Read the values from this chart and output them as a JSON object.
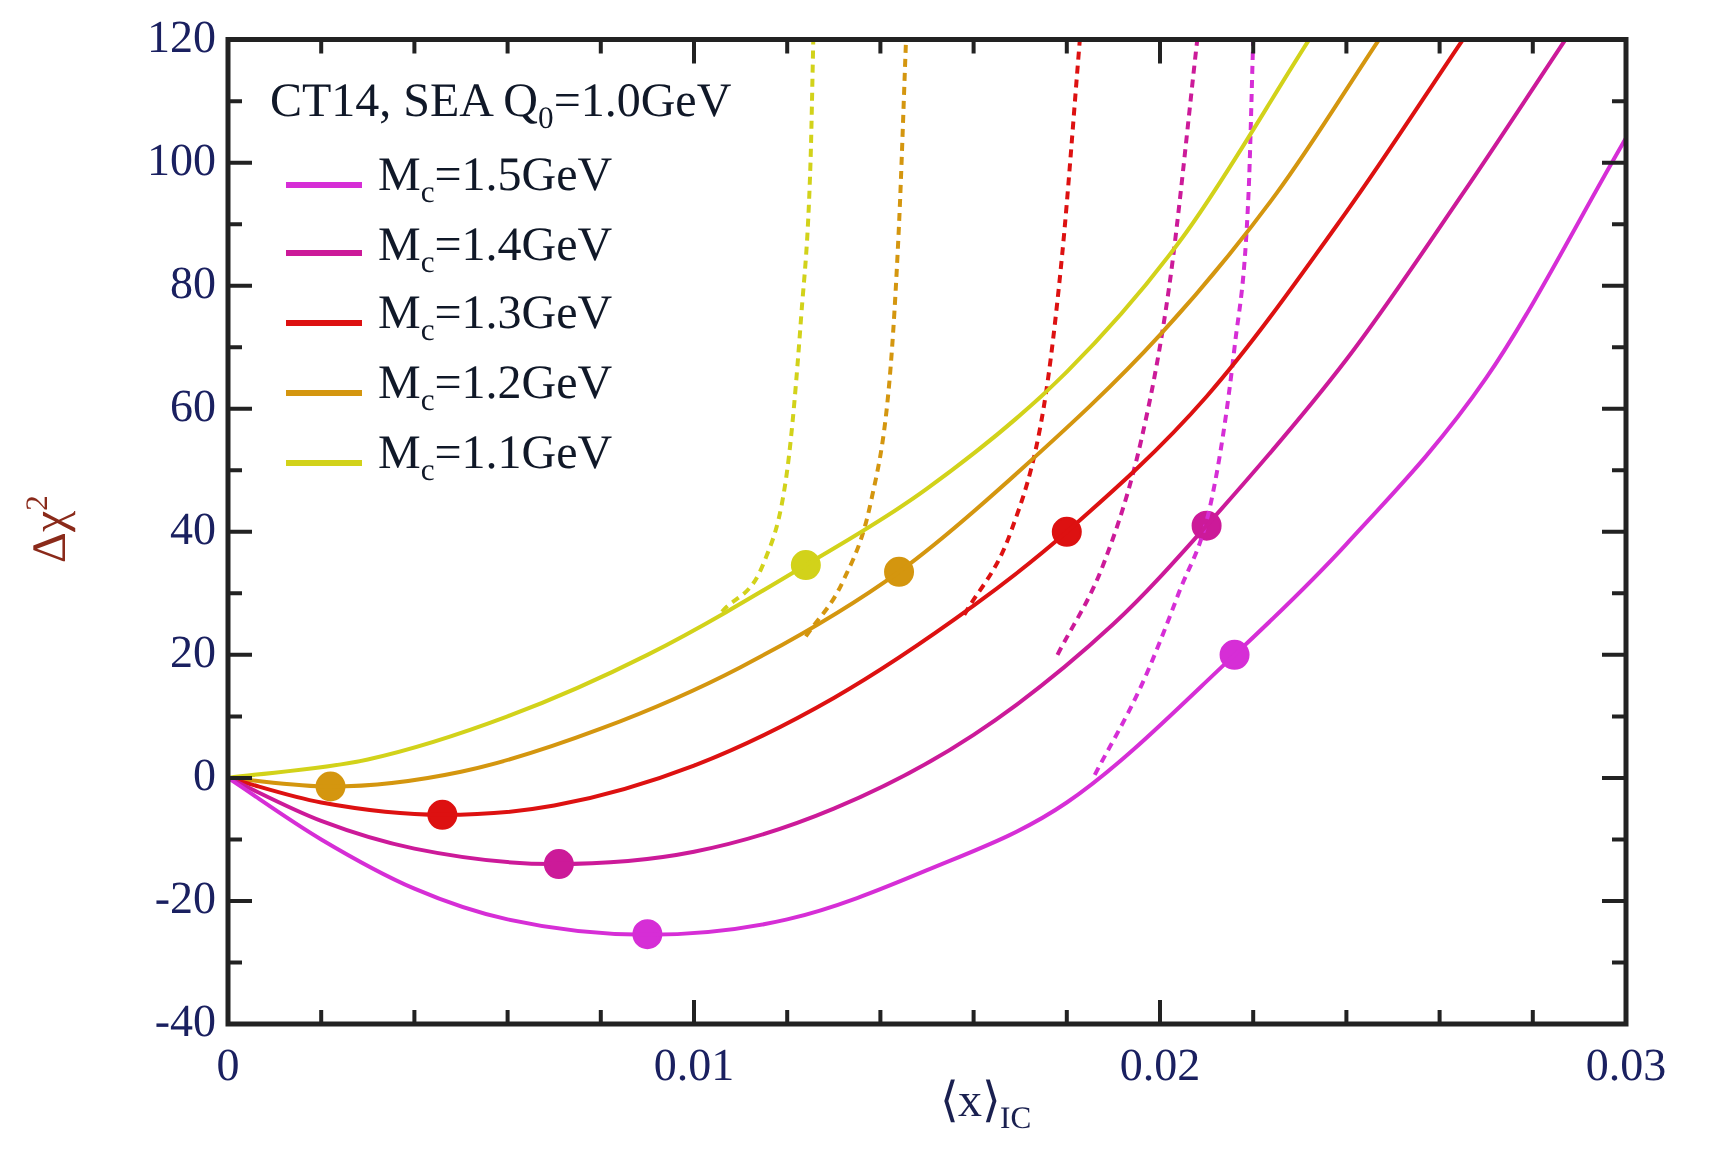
{
  "chart_data": {
    "type": "line",
    "xlabel": "⟨x⟩$_{IC}$",
    "ylabel": "Δχ$^{2}$",
    "legend_title": "CT14, SEA  Q$_{0}$=1.0GeV",
    "legend": "top left",
    "grid": false,
    "xlim": [
      0,
      0.03
    ],
    "xticks": [
      0,
      {
        "value": 0.002,
        "label": null
      },
      {
        "value": 0.004,
        "label": null
      },
      {
        "value": 0.006,
        "label": null
      },
      {
        "value": 0.008,
        "label": null
      },
      0.01,
      {
        "value": 0.012,
        "label": null
      },
      {
        "value": 0.014,
        "label": null
      },
      {
        "value": 0.016,
        "label": null
      },
      {
        "value": 0.018,
        "label": null
      },
      0.02,
      {
        "value": 0.022,
        "label": null
      },
      {
        "value": 0.024,
        "label": null
      },
      {
        "value": 0.026,
        "label": null
      },
      {
        "value": 0.028,
        "label": null
      },
      0.03
    ],
    "ylim": [
      -40,
      120
    ],
    "yticks": [
      -40,
      {
        "value": -30,
        "label": null
      },
      -20,
      {
        "value": -10,
        "label": null
      },
      0,
      {
        "value": 10,
        "label": null
      },
      20,
      {
        "value": 30,
        "label": null
      },
      40,
      {
        "value": 50,
        "label": null
      },
      60,
      {
        "value": 70,
        "label": null
      },
      80,
      {
        "value": 90,
        "label": null
      },
      100,
      {
        "value": 110,
        "label": null
      },
      120
    ],
    "series": [
      {
        "name": "M$_{c}$=1.5GeV",
        "type": "line",
        "color": "#d62ed6",
        "marker": "none",
        "line_style": "solid",
        "x": [
          0,
          0.002,
          0.004,
          0.006,
          0.009,
          0.012,
          0.015,
          0.018,
          0.0216,
          0.024,
          0.027,
          0.03
        ],
        "values": [
          0,
          -10,
          -18,
          -23,
          -25.5,
          -23,
          -15,
          -4,
          20,
          38,
          65,
          104
        ]
      },
      {
        "name": "M$_{c}$=1.4GeV",
        "type": "line",
        "color": "#cc1a99",
        "marker": "none",
        "line_style": "solid",
        "x": [
          0,
          0.002,
          0.004,
          0.007,
          0.01,
          0.013,
          0.016,
          0.019,
          0.021,
          0.024,
          0.0265,
          0.0287
        ],
        "values": [
          0,
          -7,
          -11.5,
          -14,
          -12,
          -5,
          7,
          25,
          41,
          68,
          95,
          120
        ]
      },
      {
        "name": "M$_{c}$=1.3GeV",
        "type": "line",
        "color": "#dd1111",
        "marker": "none",
        "line_style": "solid",
        "x": [
          0,
          0.002,
          0.0046,
          0.007,
          0.01,
          0.013,
          0.016,
          0.018,
          0.021,
          0.024,
          0.0265
        ],
        "values": [
          0,
          -4,
          -6,
          -4.5,
          2,
          13,
          28,
          40,
          62,
          92,
          120
        ]
      },
      {
        "name": "M$_{c}$=1.2GeV",
        "type": "line",
        "color": "#d4960f",
        "marker": "none",
        "line_style": "solid",
        "x": [
          0,
          0.0022,
          0.005,
          0.008,
          0.011,
          0.0144,
          0.017,
          0.02,
          0.0225,
          0.0247
        ],
        "values": [
          0,
          -1.4,
          1,
          8,
          18,
          33.5,
          50,
          72,
          95,
          120
        ]
      },
      {
        "name": "M$_{c}$=1.1GeV",
        "type": "line",
        "color": "#d2d21a",
        "marker": "none",
        "line_style": "solid",
        "x": [
          0,
          0.003,
          0.006,
          0.009,
          0.0124,
          0.015,
          0.018,
          0.0205,
          0.0232
        ],
        "values": [
          0,
          3,
          10,
          20,
          34.6,
          47,
          66,
          88,
          120
        ]
      },
      {
        "type": "line",
        "color": "#d62ed6",
        "marker": "none",
        "line_style": "dashed",
        "x": [
          0.0186,
          0.0196,
          0.0204,
          0.0211,
          0.0216,
          0.0219,
          0.022
        ],
        "values": [
          0.5,
          15,
          30,
          45,
          70,
          95,
          120
        ]
      },
      {
        "type": "line",
        "color": "#cc1a99",
        "marker": "none",
        "line_style": "dashed",
        "x": [
          0.0178,
          0.0188,
          0.0196,
          0.0202,
          0.0208
        ],
        "values": [
          20,
          35,
          55,
          80,
          120
        ]
      },
      {
        "type": "line",
        "color": "#dd1111",
        "marker": "none",
        "line_style": "dashed",
        "x": [
          0.0158,
          0.0168,
          0.0175,
          0.0179,
          0.01828
        ],
        "values": [
          26.5,
          40,
          60,
          85,
          120
        ]
      },
      {
        "type": "line",
        "color": "#d4960f",
        "marker": "none",
        "line_style": "dashed",
        "x": [
          0.0124,
          0.0132,
          0.0138,
          0.0142,
          0.0144,
          0.01455
        ],
        "values": [
          23,
          32,
          45,
          65,
          90,
          120
        ]
      },
      {
        "type": "line",
        "color": "#d2d21a",
        "marker": "none",
        "line_style": "dashed",
        "x": [
          0.0106,
          0.0115,
          0.012,
          0.0123,
          0.0125,
          0.01256
        ],
        "values": [
          27,
          35,
          50,
          75,
          100,
          120
        ]
      },
      {
        "type": "scatter",
        "color": "#d62ed6",
        "marker": "circle",
        "x": [
          0.009,
          0.0216
        ],
        "values": [
          -25.4,
          20
        ]
      },
      {
        "type": "scatter",
        "color": "#cc1a99",
        "marker": "circle",
        "x": [
          0.0071,
          0.021
        ],
        "values": [
          -14,
          41
        ]
      },
      {
        "type": "scatter",
        "color": "#dd1111",
        "marker": "circle",
        "x": [
          0.0046,
          0.018
        ],
        "values": [
          -6,
          40
        ]
      },
      {
        "type": "scatter",
        "color": "#d4960f",
        "marker": "circle",
        "x": [
          0.0022,
          0.0144
        ],
        "values": [
          -1.4,
          33.5
        ]
      },
      {
        "type": "scatter",
        "color": "#d2d21a",
        "marker": "circle",
        "x": [
          0.0124
        ],
        "values": [
          34.6
        ]
      }
    ]
  }
}
